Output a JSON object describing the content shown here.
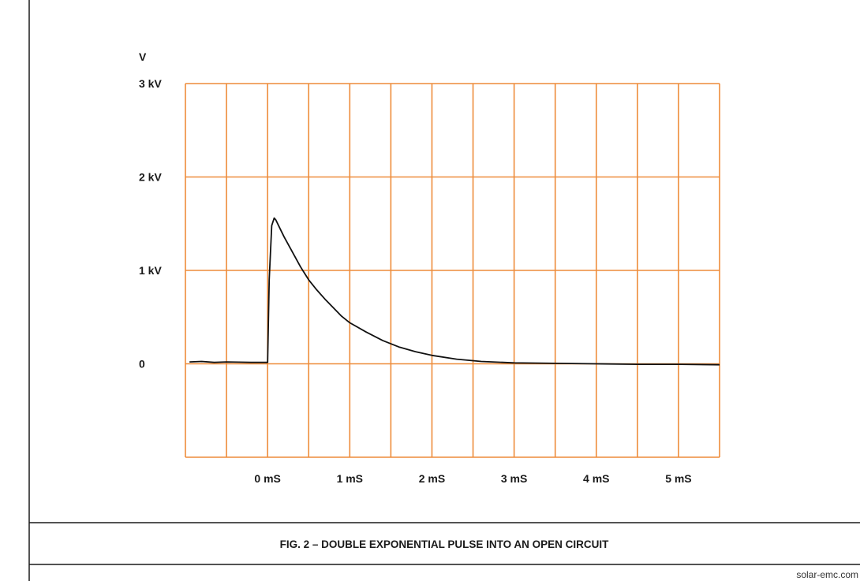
{
  "chart_data": {
    "type": "line",
    "ylabel": "V",
    "y_ticks": [
      "3 kV",
      "2 kV",
      "1 kV",
      "0"
    ],
    "x_ticks": [
      "0 mS",
      "1 mS",
      "2 mS",
      "3 mS",
      "4 mS",
      "5 mS"
    ],
    "xlim": [
      -1,
      5.5
    ],
    "ylim": [
      -1000,
      3000
    ],
    "grid": true,
    "grid_color": "#ee8c3a",
    "line_color": "#111111",
    "series": [
      {
        "x": [
          -0.95,
          -0.8,
          -0.65,
          -0.5,
          -0.35,
          -0.2,
          -0.08,
          0,
          0.02,
          0.05,
          0.08,
          0.1,
          0.15,
          0.2,
          0.3,
          0.4,
          0.5,
          0.6,
          0.7,
          0.8,
          0.9,
          1.0,
          1.2,
          1.4,
          1.6,
          1.8,
          2.0,
          2.3,
          2.6,
          3.0,
          3.5,
          4.0,
          4.5,
          5.0,
          5.5
        ],
        "y": [
          20,
          25,
          15,
          20,
          18,
          15,
          15,
          15,
          900,
          1480,
          1560,
          1540,
          1450,
          1360,
          1200,
          1040,
          900,
          790,
          690,
          600,
          510,
          440,
          340,
          250,
          180,
          130,
          90,
          50,
          25,
          10,
          5,
          0,
          -5,
          -5,
          -10
        ]
      }
    ]
  },
  "caption": "FIG. 2 – DOUBLE EXPONENTIAL PULSE INTO AN OPEN CIRCUIT",
  "credit": "solar-emc.com"
}
